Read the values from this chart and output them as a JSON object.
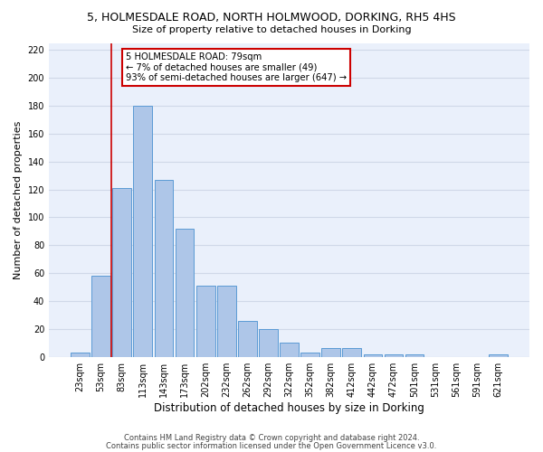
{
  "title1": "5, HOLMESDALE ROAD, NORTH HOLMWOOD, DORKING, RH5 4HS",
  "title2": "Size of property relative to detached houses in Dorking",
  "xlabel": "Distribution of detached houses by size in Dorking",
  "ylabel": "Number of detached properties",
  "bar_labels": [
    "23sqm",
    "53sqm",
    "83sqm",
    "113sqm",
    "143sqm",
    "173sqm",
    "202sqm",
    "232sqm",
    "262sqm",
    "292sqm",
    "322sqm",
    "352sqm",
    "382sqm",
    "412sqm",
    "442sqm",
    "472sqm",
    "501sqm",
    "531sqm",
    "561sqm",
    "591sqm",
    "621sqm"
  ],
  "bar_values": [
    3,
    58,
    121,
    180,
    127,
    92,
    51,
    51,
    26,
    20,
    10,
    3,
    6,
    6,
    2,
    2,
    2,
    0,
    0,
    0,
    2
  ],
  "bar_color": "#aec6e8",
  "bar_edge_color": "#5b9bd5",
  "annotation_text_lines": [
    "5 HOLMESDALE ROAD: 79sqm",
    "← 7% of detached houses are smaller (49)",
    "93% of semi-detached houses are larger (647) →"
  ],
  "ylim": [
    0,
    225
  ],
  "yticks": [
    0,
    20,
    40,
    60,
    80,
    100,
    120,
    140,
    160,
    180,
    200,
    220
  ],
  "footer1": "Contains HM Land Registry data © Crown copyright and database right 2024.",
  "footer2": "Contains public sector information licensed under the Open Government Licence v3.0.",
  "grid_color": "#d0d8e8",
  "bg_color": "#eaf0fb",
  "red_line_color": "#cc0000",
  "annotation_box_color": "white",
  "annotation_box_edge_color": "#cc0000"
}
